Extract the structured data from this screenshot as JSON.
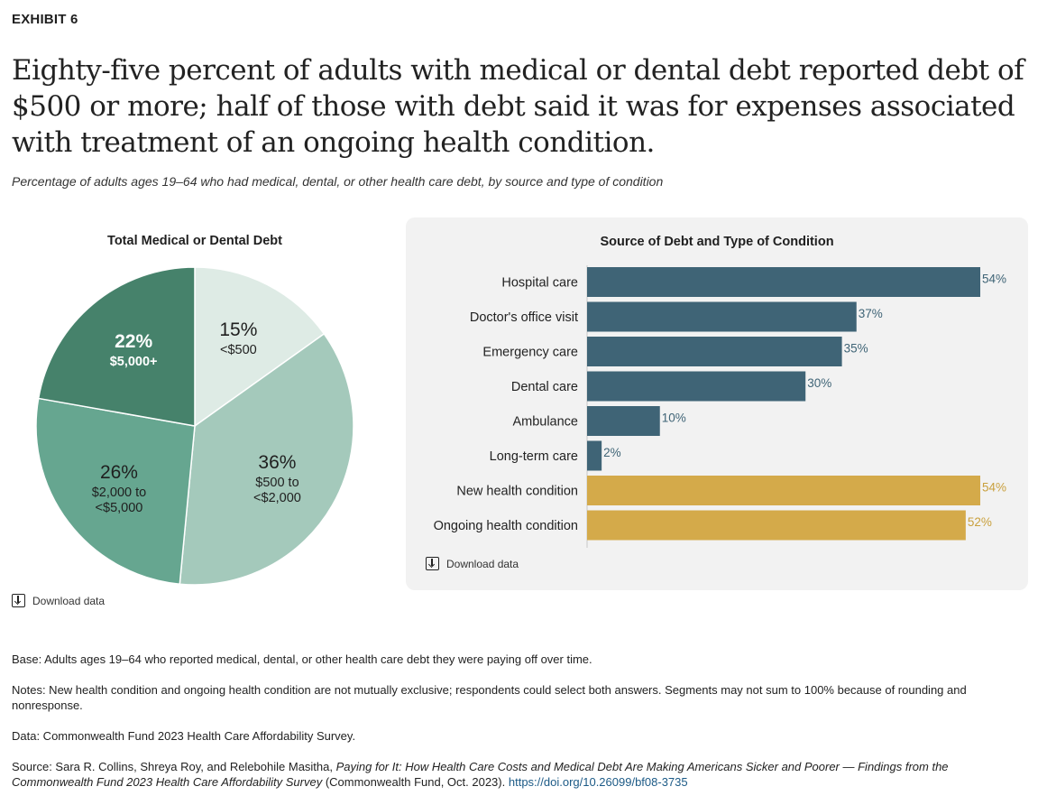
{
  "header": {
    "exhibit": "EXHIBIT 6",
    "title": "Eighty-five percent of adults with medical or dental debt reported debt of $500 or more; half of those with debt said it was for expenses associated with treatment of an ongoing health condition.",
    "subtitle": "Percentage of adults ages 19–64 who had medical, dental, or other health care debt, by source and type of condition"
  },
  "download_label": "Download data",
  "colors": {
    "pie": [
      "#deebe5",
      "#a4c9bb",
      "#66a690",
      "#46826b"
    ],
    "source": "#3f6476",
    "condition": "#d4aa4a",
    "panel_bg": "#f2f2f2"
  },
  "chart_data": [
    {
      "type": "pie",
      "title": "Total Medical or Dental Debt",
      "slices": [
        {
          "value": 15,
          "label": "15%",
          "category": "<$500"
        },
        {
          "value": 36,
          "label": "36%",
          "category": "$500 to <$2,000"
        },
        {
          "value": 26,
          "label": "26%",
          "category": "$2,000 to <$5,000"
        },
        {
          "value": 22,
          "label": "22%",
          "category": "$5,000+"
        }
      ]
    },
    {
      "type": "bar",
      "orientation": "horizontal",
      "title": "Source of Debt and Type of Condition",
      "categories": [
        "Hospital care",
        "Doctor's office visit",
        "Emergency care",
        "Dental care",
        "Ambulance",
        "Long-term care",
        "New health condition",
        "Ongoing health condition"
      ],
      "values": [
        54,
        37,
        35,
        30,
        10,
        2,
        54,
        52
      ],
      "groups": [
        "source",
        "source",
        "source",
        "source",
        "source",
        "source",
        "condition",
        "condition"
      ],
      "xlim": [
        0,
        54
      ]
    }
  ],
  "footer": {
    "base": "Base: Adults ages 19–64 who reported medical, dental, or other health care debt they were paying off over time.",
    "notes": "Notes: New health condition and ongoing health condition are not mutually exclusive; respondents could select both answers. Segments may not sum to 100% because of rounding and nonresponse.",
    "data": "Data: Commonwealth Fund 2023 Health Care Affordability Survey.",
    "source_prefix": "Source: Sara R. Collins, Shreya Roy, and Relebohile Masitha, ",
    "source_title": "Paying for It: How Health Care Costs and Medical Debt Are Making Americans Sicker and Poorer — Findings from the Commonwealth Fund 2023 Health Care Affordability Survey",
    "source_suffix": " (Commonwealth Fund, Oct. 2023). ",
    "source_link": "https://doi.org/10.26099/bf08-3735"
  }
}
